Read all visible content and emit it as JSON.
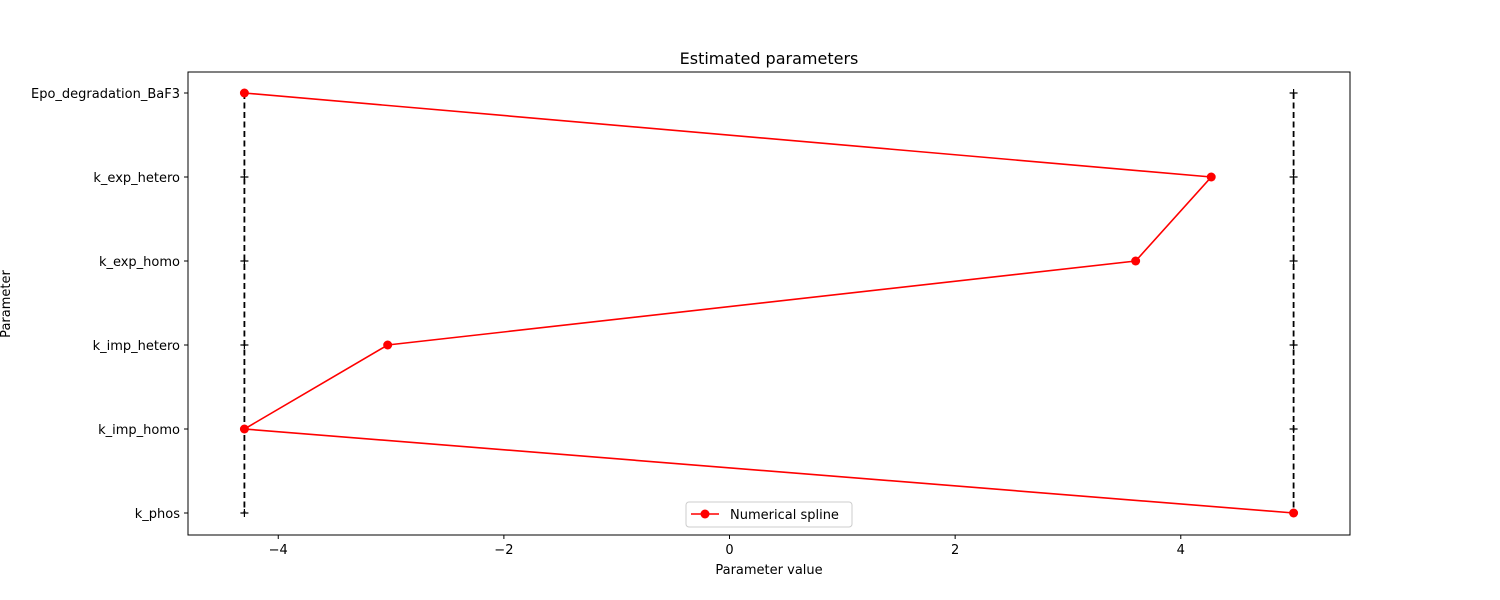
{
  "chart_data": {
    "type": "line",
    "title": "Estimated parameters",
    "xlabel": "Parameter value",
    "ylabel": "Parameter",
    "xlim": [
      -4.8,
      5.5
    ],
    "xticks": [
      {
        "value": -4,
        "label": "−4"
      },
      {
        "value": -2,
        "label": "−2"
      },
      {
        "value": 0,
        "label": "0"
      },
      {
        "value": 2,
        "label": "2"
      },
      {
        "value": 4,
        "label": "4"
      }
    ],
    "categories": [
      "Epo_degradation_BaF3",
      "k_exp_hetero",
      "k_exp_homo",
      "k_imp_hetero",
      "k_imp_homo",
      "k_phos"
    ],
    "bounds": {
      "lower": -4.3,
      "upper": 5.0,
      "style": "black dashed with + markers"
    },
    "series": [
      {
        "name": "Numerical spline",
        "color": "#ff0000",
        "marker": "circle",
        "values": [
          -4.3,
          4.27,
          3.6,
          -3.03,
          -4.3,
          5.0
        ]
      }
    ],
    "legend": {
      "position": "bottom-center",
      "entries": [
        "Numerical spline"
      ]
    },
    "grid": false
  }
}
